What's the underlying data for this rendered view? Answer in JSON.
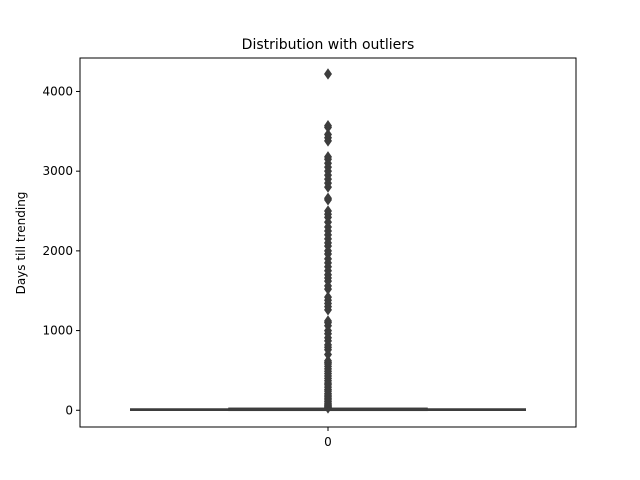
{
  "chart_data": {
    "type": "box",
    "title": "Distribution with outliers",
    "xlabel": "",
    "ylabel": "Days till trending",
    "categories": [
      "0"
    ],
    "ylim": [
      -210,
      4420
    ],
    "yticks": [
      0,
      1000,
      2000,
      3000,
      4000
    ],
    "grid": false,
    "colors": {
      "box": "#555555",
      "outline": "#3d3d3d",
      "outlier_fill": "#3d3d3d"
    },
    "box": {
      "category": "0",
      "min": 0,
      "q1": 1,
      "median": 5,
      "q3": 12,
      "max": 28
    },
    "outliers": [
      30,
      40,
      50,
      60,
      75,
      90,
      110,
      130,
      150,
      170,
      190,
      210,
      240,
      260,
      290,
      320,
      340,
      370,
      400,
      430,
      460,
      490,
      520,
      550,
      580,
      600,
      620,
      700,
      760,
      790,
      820,
      870,
      910,
      960,
      1000,
      1060,
      1100,
      1120,
      1260,
      1300,
      1340,
      1380,
      1420,
      1520,
      1560,
      1620,
      1660,
      1700,
      1750,
      1800,
      1850,
      1900,
      1960,
      2000,
      2060,
      2100,
      2150,
      2200,
      2250,
      2300,
      2360,
      2420,
      2460,
      2500,
      2640,
      2660,
      2800,
      2850,
      2900,
      2950,
      3000,
      3050,
      3100,
      3150,
      3180,
      3380,
      3420,
      3460,
      3550,
      3570,
      4220
    ]
  }
}
